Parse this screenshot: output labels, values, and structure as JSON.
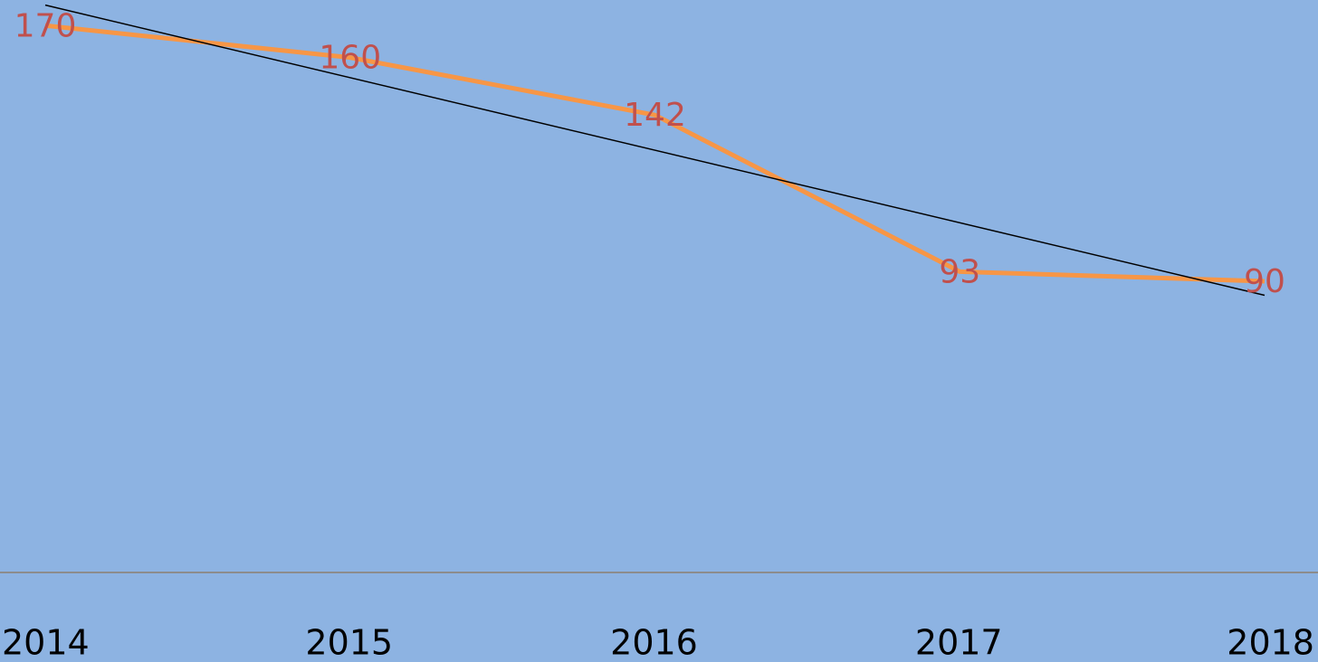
{
  "chart_data": {
    "type": "line",
    "categories": [
      "2014",
      "2015",
      "2016",
      "2017",
      "2018"
    ],
    "series": [
      {
        "color": "#f79646",
        "values": [
          170,
          160,
          142,
          93,
          90
        ]
      }
    ],
    "label_color": "#c0504d",
    "trendline": true,
    "trendline_color": "#000000",
    "ylim": [
      0,
      178
    ],
    "background": "#8db3e2"
  }
}
